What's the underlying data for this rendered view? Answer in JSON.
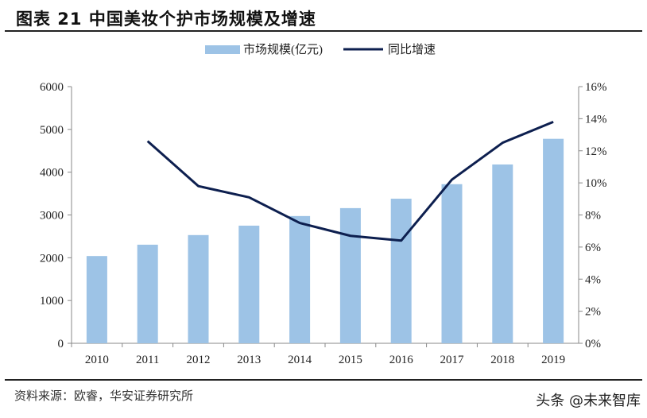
{
  "title": "图表 21  中国美妆个护市场规模及增速",
  "source": "资料来源：欧睿，华安证券研究所",
  "watermark": "头条 @未来智库",
  "chart_data": {
    "type": "bar+line",
    "categories": [
      "2010",
      "2011",
      "2012",
      "2013",
      "2014",
      "2015",
      "2016",
      "2017",
      "2018",
      "2019"
    ],
    "series": [
      {
        "name": "市场规模(亿元)",
        "type": "bar",
        "axis": "left",
        "color": "#9dc3e6",
        "values": [
          2040,
          2305,
          2530,
          2750,
          2975,
          3160,
          3380,
          3720,
          4180,
          4780
        ]
      },
      {
        "name": "同比增速",
        "type": "line",
        "axis": "right",
        "color": "#0d1f4f",
        "values": [
          null,
          12.6,
          9.8,
          9.1,
          7.5,
          6.7,
          6.4,
          10.2,
          12.5,
          13.8
        ]
      }
    ],
    "left_axis": {
      "ylim": [
        0,
        6000
      ],
      "ticks": [
        "0",
        "1000",
        "2000",
        "3000",
        "4000",
        "5000",
        "6000"
      ]
    },
    "right_axis": {
      "ylim": [
        0,
        16
      ],
      "unit": "%",
      "ticks": [
        "0%",
        "2%",
        "4%",
        "6%",
        "8%",
        "10%",
        "12%",
        "14%",
        "16%"
      ]
    },
    "grid": false,
    "legend_placement": "top-center"
  }
}
